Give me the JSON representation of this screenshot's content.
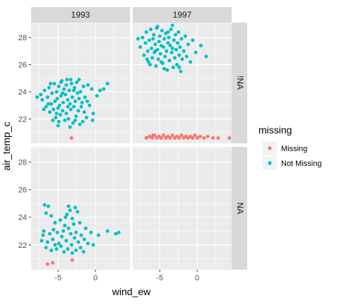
{
  "chart_data": {
    "type": "scatter",
    "title": "",
    "xlabel": "wind_ew",
    "ylabel": "air_temp_c",
    "xlim": [
      -8.6,
      4.6
    ],
    "ylim": [
      20.2,
      29.1
    ],
    "xticks": [
      -5,
      0
    ],
    "yticks": [
      22,
      24,
      26,
      28
    ],
    "grid": true,
    "facet_columns": [
      "1993",
      "1997"
    ],
    "facet_rows": [
      "!NA",
      "NA"
    ],
    "legend": {
      "title": "missing",
      "position": "right",
      "entries": [
        {
          "label": "Missing",
          "color": "#F8766D"
        },
        {
          "label": "Not Missing",
          "color": "#00BFC4"
        }
      ]
    },
    "panels": [
      {
        "col": "1993",
        "row": "!NA",
        "series": [
          {
            "name": "Not Missing",
            "color": "#00BFC4",
            "points": [
              [
                -7.3,
                23.8
              ],
              [
                -7.1,
                23.4
              ],
              [
                -6.8,
                24.1
              ],
              [
                -6.6,
                22.9
              ],
              [
                -6.4,
                23.6
              ],
              [
                -6.2,
                24.3
              ],
              [
                -6.1,
                22.5
              ],
              [
                -5.9,
                23.1
              ],
              [
                -5.8,
                23.9
              ],
              [
                -5.6,
                22.7
              ],
              [
                -5.5,
                24.6
              ],
              [
                -5.4,
                23.3
              ],
              [
                -5.3,
                22.1
              ],
              [
                -5.2,
                24.0
              ],
              [
                -5.1,
                23.5
              ],
              [
                -5.0,
                22.8
              ],
              [
                -4.9,
                24.4
              ],
              [
                -4.8,
                23.0
              ],
              [
                -4.7,
                22.3
              ],
              [
                -4.6,
                23.7
              ],
              [
                -4.5,
                24.8
              ],
              [
                -4.4,
                22.6
              ],
              [
                -4.3,
                23.2
              ],
              [
                -4.2,
                24.2
              ],
              [
                -4.1,
                21.9
              ],
              [
                -4.0,
                23.8
              ],
              [
                -3.9,
                22.4
              ],
              [
                -3.8,
                24.9
              ],
              [
                -3.7,
                23.4
              ],
              [
                -3.6,
                22.0
              ],
              [
                -3.5,
                24.1
              ],
              [
                -3.4,
                23.1
              ],
              [
                -3.3,
                22.7
              ],
              [
                -3.2,
                24.6
              ],
              [
                -3.1,
                23.6
              ],
              [
                -3.0,
                21.7
              ],
              [
                -2.9,
                22.9
              ],
              [
                -2.8,
                24.3
              ],
              [
                -2.7,
                23.3
              ],
              [
                -2.6,
                22.2
              ],
              [
                -2.5,
                24.7
              ],
              [
                -2.4,
                23.9
              ],
              [
                -2.3,
                22.6
              ],
              [
                -2.2,
                23.5
              ],
              [
                -2.1,
                21.6
              ],
              [
                -2.0,
                24.0
              ],
              [
                -1.9,
                22.9
              ],
              [
                -1.8,
                23.2
              ],
              [
                -1.6,
                24.4
              ],
              [
                -1.5,
                22.5
              ],
              [
                -1.4,
                23.6
              ],
              [
                -1.2,
                22.1
              ],
              [
                -1.0,
                24.5
              ],
              [
                -0.8,
                23.0
              ],
              [
                -0.5,
                24.2
              ],
              [
                -0.3,
                22.4
              ],
              [
                0.2,
                23.7
              ],
              [
                0.6,
                24.1
              ],
              [
                -6.9,
                22.7
              ],
              [
                -5.7,
                21.9
              ],
              [
                -4.6,
                24.7
              ],
              [
                -3.3,
                24.9
              ],
              [
                -2.2,
                24.9
              ],
              [
                -4.9,
                21.8
              ],
              [
                -6.3,
                23.1
              ],
              [
                -5.2,
                22.4
              ],
              [
                -3.7,
                22.9
              ],
              [
                -2.7,
                21.9
              ],
              [
                -1.7,
                21.8
              ],
              [
                -4.4,
                23.9
              ],
              [
                -6.0,
                24.6
              ],
              [
                -5.0,
                21.5
              ],
              [
                -3.9,
                24.5
              ],
              [
                -2.9,
                24.1
              ],
              [
                -1.1,
                23.3
              ],
              [
                -0.4,
                21.9
              ],
              [
                1.1,
                24.2
              ],
              [
                1.6,
                24.6
              ],
              [
                -7.8,
                23.6
              ],
              [
                -3.4,
                21.4
              ]
            ]
          },
          {
            "name": "Missing",
            "color": "#F8766D",
            "points": [
              [
                -3.2,
                20.6
              ]
            ]
          }
        ]
      },
      {
        "col": "1997",
        "row": "!NA",
        "series": [
          {
            "name": "Not Missing",
            "color": "#00BFC4",
            "points": [
              [
                -7.6,
                27.3
              ],
              [
                -7.3,
                28.0
              ],
              [
                -7.1,
                26.7
              ],
              [
                -6.9,
                27.6
              ],
              [
                -6.8,
                28.4
              ],
              [
                -6.6,
                27.0
              ],
              [
                -6.5,
                26.2
              ],
              [
                -6.4,
                27.8
              ],
              [
                -6.2,
                28.6
              ],
              [
                -6.1,
                27.2
              ],
              [
                -6.0,
                26.5
              ],
              [
                -5.9,
                27.9
              ],
              [
                -5.8,
                28.2
              ],
              [
                -5.7,
                26.9
              ],
              [
                -5.6,
                27.5
              ],
              [
                -5.5,
                25.9
              ],
              [
                -5.4,
                28.7
              ],
              [
                -5.3,
                27.1
              ],
              [
                -5.2,
                26.4
              ],
              [
                -5.1,
                27.7
              ],
              [
                -5.0,
                28.1
              ],
              [
                -4.9,
                26.8
              ],
              [
                -4.8,
                27.4
              ],
              [
                -4.7,
                28.5
              ],
              [
                -4.6,
                26.1
              ],
              [
                -4.5,
                27.3
              ],
              [
                -4.4,
                27.9
              ],
              [
                -4.3,
                26.6
              ],
              [
                -4.2,
                28.3
              ],
              [
                -4.1,
                27.0
              ],
              [
                -4.0,
                25.6
              ],
              [
                -3.9,
                27.6
              ],
              [
                -3.8,
                28.0
              ],
              [
                -3.7,
                26.3
              ],
              [
                -3.6,
                27.4
              ],
              [
                -3.5,
                28.6
              ],
              [
                -3.4,
                26.9
              ],
              [
                -3.3,
                27.2
              ],
              [
                -3.2,
                25.8
              ],
              [
                -3.1,
                27.8
              ],
              [
                -3.0,
                26.5
              ],
              [
                -2.9,
                28.2
              ],
              [
                -2.8,
                27.1
              ],
              [
                -2.7,
                26.0
              ],
              [
                -2.6,
                27.6
              ],
              [
                -2.5,
                28.4
              ],
              [
                -2.4,
                26.7
              ],
              [
                -2.3,
                27.3
              ],
              [
                -2.2,
                25.5
              ],
              [
                -2.1,
                27.9
              ],
              [
                -2.0,
                26.4
              ],
              [
                -1.8,
                27.0
              ],
              [
                -1.6,
                28.1
              ],
              [
                -1.4,
                26.6
              ],
              [
                -1.2,
                27.5
              ],
              [
                -0.9,
                26.2
              ],
              [
                -0.6,
                27.8
              ],
              [
                -0.2,
                26.9
              ],
              [
                0.5,
                27.4
              ],
              [
                1.2,
                26.6
              ],
              [
                -6.3,
                26.0
              ],
              [
                -5.3,
                28.8
              ],
              [
                -4.4,
                25.7
              ],
              [
                -3.3,
                28.9
              ],
              [
                -2.4,
                25.8
              ],
              [
                -7.9,
                27.9
              ],
              [
                -6.7,
                26.4
              ],
              [
                -5.6,
                27.0
              ],
              [
                -4.8,
                26.2
              ],
              [
                -3.9,
                28.4
              ]
            ]
          },
          {
            "name": "Missing",
            "color": "#F8766D",
            "points": [
              [
                -6.8,
                20.6
              ],
              [
                -6.4,
                20.7
              ],
              [
                -6.0,
                20.6
              ],
              [
                -5.7,
                20.8
              ],
              [
                -5.4,
                20.6
              ],
              [
                -5.1,
                20.7
              ],
              [
                -4.8,
                20.6
              ],
              [
                -4.5,
                20.8
              ],
              [
                -4.2,
                20.6
              ],
              [
                -3.9,
                20.7
              ],
              [
                -3.6,
                20.6
              ],
              [
                -3.3,
                20.8
              ],
              [
                -3.0,
                20.6
              ],
              [
                -2.7,
                20.7
              ],
              [
                -2.4,
                20.6
              ],
              [
                -2.1,
                20.8
              ],
              [
                -1.8,
                20.6
              ],
              [
                -1.5,
                20.7
              ],
              [
                -1.2,
                20.6
              ],
              [
                -0.9,
                20.7
              ],
              [
                -0.6,
                20.6
              ],
              [
                -0.3,
                20.8
              ],
              [
                0.0,
                20.6
              ],
              [
                0.4,
                20.7
              ],
              [
                0.9,
                20.6
              ],
              [
                1.4,
                20.7
              ],
              [
                2.1,
                20.6
              ],
              [
                2.8,
                20.6
              ],
              [
                4.3,
                20.6
              ],
              [
                -5.9,
                20.8
              ]
            ]
          }
        ]
      },
      {
        "col": "1993",
        "row": "NA",
        "series": [
          {
            "name": "Not Missing",
            "color": "#00BFC4",
            "points": [
              [
                -6.8,
                24.9
              ],
              [
                -6.3,
                24.8
              ],
              [
                -6.6,
                24.3
              ],
              [
                -5.9,
                24.1
              ],
              [
                -5.4,
                23.6
              ],
              [
                -4.7,
                23.8
              ],
              [
                -4.1,
                23.4
              ],
              [
                -3.8,
                24.2
              ],
              [
                -3.4,
                24.5
              ],
              [
                -3.1,
                23.9
              ],
              [
                -2.7,
                24.7
              ],
              [
                -2.4,
                24.4
              ],
              [
                -2.1,
                23.6
              ],
              [
                -3.6,
                23.2
              ],
              [
                -4.3,
                23.0
              ],
              [
                -5.1,
                22.9
              ],
              [
                -6.1,
                22.8
              ],
              [
                -7.0,
                22.7
              ],
              [
                -7.2,
                22.3
              ],
              [
                -6.4,
                22.2
              ],
              [
                -5.7,
                22.4
              ],
              [
                -4.9,
                22.1
              ],
              [
                -4.5,
                22.6
              ],
              [
                -3.9,
                22.3
              ],
              [
                -3.3,
                22.8
              ],
              [
                -2.8,
                22.5
              ],
              [
                -2.3,
                22.2
              ],
              [
                -1.9,
                22.7
              ],
              [
                -1.5,
                22.4
              ],
              [
                -1.0,
                22.1
              ],
              [
                -0.6,
                22.9
              ],
              [
                0.4,
                22.7
              ],
              [
                1.6,
                23.0
              ],
              [
                2.7,
                22.8
              ],
              [
                3.1,
                22.9
              ],
              [
                -6.6,
                21.8
              ],
              [
                -5.9,
                21.6
              ],
              [
                -5.2,
                21.7
              ],
              [
                -4.6,
                21.9
              ],
              [
                -4.2,
                21.5
              ],
              [
                -3.7,
                21.7
              ],
              [
                -3.1,
                21.4
              ],
              [
                -2.6,
                21.6
              ],
              [
                -2.0,
                21.8
              ],
              [
                -1.6,
                21.5
              ],
              [
                -3.6,
                24.8
              ],
              [
                -5.6,
                23.1
              ],
              [
                -2.9,
                23.5
              ],
              [
                -1.3,
                23.2
              ],
              [
                -0.3,
                22.0
              ],
              [
                -6.9,
                23.0
              ],
              [
                -4.0,
                24.0
              ],
              [
                -2.6,
                22.9
              ],
              [
                -5.4,
                22.0
              ],
              [
                -3.2,
                22.0
              ]
            ]
          },
          {
            "name": "Missing",
            "color": "#F8766D",
            "points": [
              [
                -6.4,
                20.6
              ],
              [
                -5.7,
                20.7
              ],
              [
                -3.1,
                20.9
              ]
            ]
          }
        ]
      },
      {
        "col": "1997",
        "row": "NA",
        "series": []
      }
    ]
  }
}
